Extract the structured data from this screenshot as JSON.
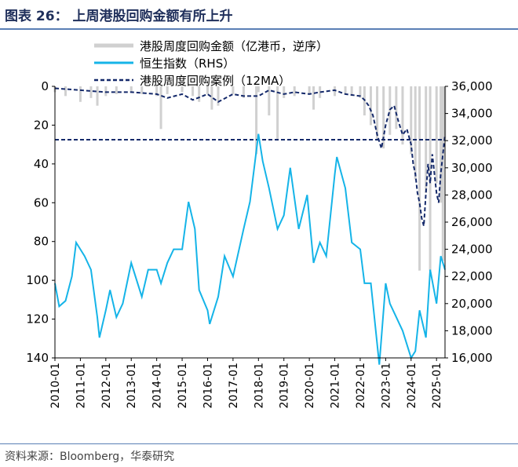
{
  "header": {
    "title": "图表 26：    上周港股回购金额有所上升"
  },
  "source": {
    "text": "资料来源：Bloomberg，华泰研究"
  },
  "colors": {
    "buyback": "#d0d0d0",
    "hsi": "#15b4e8",
    "ma": "#14296a",
    "axis": "#000000"
  },
  "chart_data": {
    "type": "line",
    "title": "",
    "x_tick_labels": [
      "2010-01",
      "2011-01",
      "2012-01",
      "2013-01",
      "2014-01",
      "2015-01",
      "2016-01",
      "2017-01",
      "2018-01",
      "2019-01",
      "2020-01",
      "2021-01",
      "2022-01",
      "2023-01",
      "2024-01",
      "2025-01"
    ],
    "xlim": [
      "2010-01",
      "2025-05"
    ],
    "y_left": {
      "ylim": [
        140,
        0
      ],
      "reversed": true,
      "tick_labels": [
        "0",
        "20",
        "40",
        "60",
        "80",
        "100",
        "120",
        "140"
      ]
    },
    "y_right": {
      "ylim": [
        16000,
        36000
      ],
      "tick_labels": [
        "16,000",
        "18,000",
        "20,000",
        "22,000",
        "24,000",
        "26,000",
        "28,000",
        "30,000",
        "32,000",
        "34,000",
        "36,000"
      ]
    },
    "legend_position": "top",
    "reference_line": {
      "axis": "left",
      "value": 27.5
    },
    "series": [
      {
        "name": "港股周度回购金额（亿港币，逆序）",
        "axis": "left",
        "style": "bar",
        "x": [
          "2010-01",
          "2010-06",
          "2011-01",
          "2011-06",
          "2011-09",
          "2012-01",
          "2012-06",
          "2013-01",
          "2013-06",
          "2014-01",
          "2014-03",
          "2014-06",
          "2015-01",
          "2015-06",
          "2015-09",
          "2016-01",
          "2016-03",
          "2016-06",
          "2017-01",
          "2017-06",
          "2017-12",
          "2018-01",
          "2018-06",
          "2018-10",
          "2019-01",
          "2019-06",
          "2020-01",
          "2020-03",
          "2020-06",
          "2021-01",
          "2021-06",
          "2021-09",
          "2022-01",
          "2022-03",
          "2022-06",
          "2022-09",
          "2022-12",
          "2023-03",
          "2023-06",
          "2023-09",
          "2024-01",
          "2024-03",
          "2024-05",
          "2024-08",
          "2024-10",
          "2025-01",
          "2025-03",
          "2025-04",
          "2025-05"
        ],
        "values": [
          3,
          5,
          8,
          6,
          10,
          5,
          4,
          3,
          4,
          5,
          22,
          4,
          3,
          5,
          8,
          4,
          12,
          10,
          4,
          6,
          35,
          3,
          15,
          28,
          6,
          5,
          4,
          12,
          6,
          5,
          4,
          5,
          6,
          15,
          20,
          28,
          32,
          25,
          22,
          30,
          35,
          48,
          95,
          55,
          95,
          50,
          60,
          90,
          28
        ]
      },
      {
        "name": "恒生指数（RHS）",
        "axis": "right",
        "style": "line",
        "x": [
          "2010-01",
          "2010-03",
          "2010-06",
          "2010-09",
          "2010-11",
          "2011-03",
          "2011-06",
          "2011-09",
          "2011-10",
          "2012-01",
          "2012-03",
          "2012-06",
          "2012-09",
          "2013-01",
          "2013-06",
          "2013-09",
          "2014-01",
          "2014-03",
          "2014-06",
          "2014-09",
          "2015-01",
          "2015-04",
          "2015-07",
          "2015-09",
          "2016-01",
          "2016-02",
          "2016-06",
          "2016-09",
          "2017-01",
          "2017-06",
          "2017-09",
          "2018-01",
          "2018-03",
          "2018-06",
          "2018-10",
          "2019-01",
          "2019-04",
          "2019-08",
          "2019-12",
          "2020-03",
          "2020-06",
          "2020-09",
          "2021-01",
          "2021-02",
          "2021-06",
          "2021-09",
          "2022-01",
          "2022-03",
          "2022-06",
          "2022-10",
          "2023-01",
          "2023-03",
          "2023-06",
          "2023-09",
          "2024-01",
          "2024-03",
          "2024-05",
          "2024-08",
          "2024-10",
          "2025-01",
          "2025-03",
          "2025-05"
        ],
        "values": [
          21500,
          19800,
          20200,
          22000,
          24500,
          23500,
          22500,
          19000,
          17500,
          19500,
          21000,
          19000,
          20000,
          23000,
          20500,
          22500,
          22500,
          21500,
          23000,
          24000,
          24000,
          27500,
          25500,
          21000,
          19500,
          18500,
          20500,
          23500,
          22000,
          25500,
          27500,
          32500,
          30500,
          28500,
          25500,
          26500,
          30000,
          25500,
          28000,
          23000,
          24500,
          23500,
          29500,
          30800,
          28500,
          24500,
          24000,
          21500,
          21500,
          15500,
          21500,
          20000,
          19000,
          18000,
          16000,
          16500,
          19500,
          17500,
          22500,
          20000,
          23500,
          22500
        ]
      },
      {
        "name": "港股周度回购案例（12MA）",
        "axis": "left",
        "style": "dashed-line",
        "x": [
          "2010-01",
          "2011-01",
          "2012-01",
          "2013-01",
          "2014-01",
          "2014-06",
          "2015-01",
          "2015-06",
          "2016-01",
          "2016-06",
          "2017-01",
          "2017-06",
          "2018-01",
          "2018-06",
          "2019-01",
          "2019-06",
          "2020-01",
          "2020-06",
          "2021-01",
          "2021-06",
          "2022-01",
          "2022-03",
          "2022-05",
          "2022-07",
          "2022-09",
          "2022-11",
          "2023-01",
          "2023-03",
          "2023-05",
          "2023-07",
          "2023-09",
          "2023-11",
          "2024-01",
          "2024-02",
          "2024-03",
          "2024-04",
          "2024-05",
          "2024-06",
          "2024-07",
          "2024-08",
          "2024-09",
          "2024-10",
          "2024-11",
          "2024-12",
          "2025-01",
          "2025-02",
          "2025-03",
          "2025-04",
          "2025-05"
        ],
        "values": [
          1,
          2,
          3,
          3,
          4,
          6,
          4,
          7,
          4,
          8,
          4,
          5,
          5,
          2,
          4,
          3,
          4,
          3,
          2,
          4,
          5,
          7,
          10,
          15,
          25,
          32,
          20,
          12,
          10,
          18,
          25,
          22,
          30,
          40,
          45,
          55,
          60,
          68,
          72,
          55,
          40,
          50,
          35,
          45,
          55,
          60,
          45,
          35,
          25
        ]
      }
    ]
  }
}
